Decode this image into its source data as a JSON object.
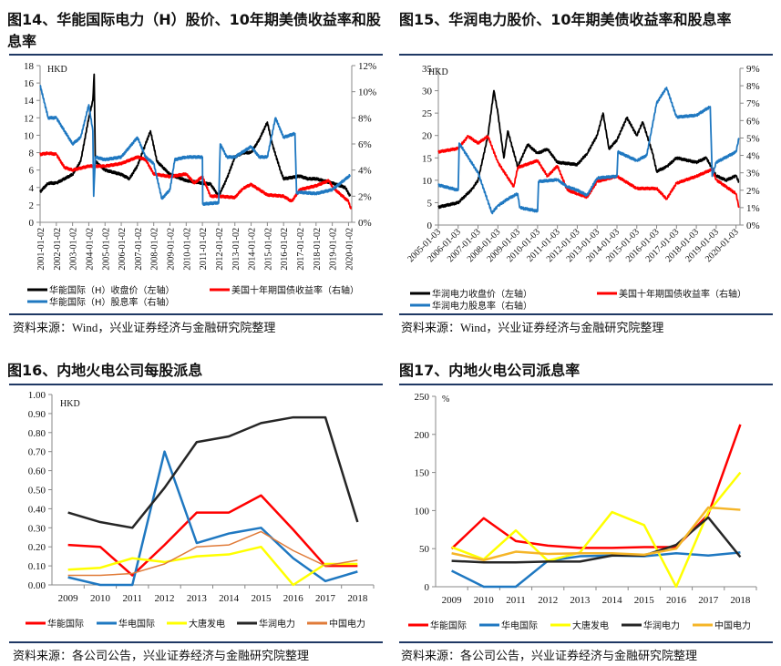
{
  "charts": [
    {
      "title": "图14、华能国际电力（H）股价、10年期美债收益率和股息率",
      "source": "资料来源：Wind，兴业证券经济与金融研究院整理"
    },
    {
      "title": "图15、华润电力股价、10年期美债收益率和股息率",
      "source": "资料来源：Wind，兴业证券经济与金融研究院整理"
    },
    {
      "title": "图16、内地火电公司每股派息",
      "source": "资料来源：各公司公告，兴业证券经济与金融研究院整理"
    },
    {
      "title": "图17、内地火电公司派息率",
      "source": "资料来源：各公司公告，兴业证券经济与金融研究院整理"
    }
  ],
  "chart_data": [
    {
      "type": "line",
      "title": "图14、华能国际电力（H）股价、10年期美债收益率和股息率",
      "unit_label": "HKD",
      "ylim": [
        0,
        18
      ],
      "yticks": [
        "0",
        "2",
        "4",
        "6",
        "8",
        "10",
        "12",
        "14",
        "16",
        "18"
      ],
      "y2lim": [
        0,
        12
      ],
      "y2ticks": [
        "0%",
        "2%",
        "4%",
        "6%",
        "8%",
        "10%",
        "12%"
      ],
      "xlim": [
        2001,
        2020.2
      ],
      "xticks": [
        "2001-01-02",
        "2002-01-02",
        "2003-01-02",
        "2004-01-02",
        "2005-01-02",
        "2006-01-02",
        "2007-01-02",
        "2008-01-02",
        "2009-01-02",
        "2010-01-02",
        "2011-01-02",
        "2012-01-02",
        "2013-01-02",
        "2014-01-02",
        "2015-01-02",
        "2016-01-02",
        "2017-01-02",
        "2018-01-02",
        "2019-01-02",
        "2020-01-02"
      ],
      "series": [
        {
          "name": "华能国际（H）收盘价（左轴）",
          "color": "#000000",
          "axis": "left",
          "points": [
            [
              2001,
              3.5
            ],
            [
              2001.5,
              4.5
            ],
            [
              2002,
              4.5
            ],
            [
              2002.5,
              5
            ],
            [
              2003,
              5.5
            ],
            [
              2003.5,
              7
            ],
            [
              2004,
              12
            ],
            [
              2004.25,
              14
            ],
            [
              2004.33,
              17
            ],
            [
              2004.4,
              7
            ],
            [
              2005,
              6
            ],
            [
              2006,
              5.5
            ],
            [
              2006.5,
              5
            ],
            [
              2007,
              6.5
            ],
            [
              2007.5,
              9
            ],
            [
              2007.8,
              10.5
            ],
            [
              2008.2,
              7
            ],
            [
              2009,
              5.5
            ],
            [
              2010,
              4.8
            ],
            [
              2011,
              4.5
            ],
            [
              2011.5,
              4.4
            ],
            [
              2012,
              3
            ],
            [
              2012.5,
              5
            ],
            [
              2013,
              7.5
            ],
            [
              2013.5,
              8
            ],
            [
              2014,
              8
            ],
            [
              2014.5,
              9.5
            ],
            [
              2015,
              11.5
            ],
            [
              2015.3,
              9
            ],
            [
              2015.8,
              6
            ],
            [
              2016,
              5
            ],
            [
              2017,
              5.3
            ],
            [
              2017.5,
              5
            ],
            [
              2018,
              5
            ],
            [
              2019,
              4.5
            ],
            [
              2019.8,
              4
            ],
            [
              2020.1,
              3
            ]
          ]
        },
        {
          "name": "美国十年期国债收益率（右轴）",
          "color": "#ff0000",
          "axis": "right",
          "points": [
            [
              2001,
              5.2
            ],
            [
              2001.5,
              5.3
            ],
            [
              2002,
              5.2
            ],
            [
              2002.5,
              4.2
            ],
            [
              2003,
              4
            ],
            [
              2004,
              4.3
            ],
            [
              2005,
              4.3
            ],
            [
              2006,
              4.5
            ],
            [
              2007,
              5
            ],
            [
              2007.5,
              4.8
            ],
            [
              2008,
              3.7
            ],
            [
              2009,
              3.5
            ],
            [
              2010,
              3.7
            ],
            [
              2010.5,
              3
            ],
            [
              2011,
              3.5
            ],
            [
              2011.5,
              2
            ],
            [
              2012,
              2
            ],
            [
              2013,
              1.9
            ],
            [
              2013.5,
              2.6
            ],
            [
              2014,
              2.9
            ],
            [
              2015,
              2.1
            ],
            [
              2016,
              2
            ],
            [
              2016.5,
              1.6
            ],
            [
              2017,
              2.5
            ],
            [
              2018,
              2.8
            ],
            [
              2018.8,
              3.2
            ],
            [
              2019,
              2.7
            ],
            [
              2020,
              1.6
            ],
            [
              2020.15,
              1.0
            ]
          ]
        },
        {
          "name": "华能国际（H）股息率（右轴）",
          "color": "#1f78c1",
          "axis": "right",
          "points": [
            [
              2001,
              10.5
            ],
            [
              2001.5,
              8
            ],
            [
              2002,
              8
            ],
            [
              2002.5,
              7
            ],
            [
              2003,
              6
            ],
            [
              2003.5,
              6.5
            ],
            [
              2004,
              9
            ],
            [
              2004.25,
              7
            ],
            [
              2004.3,
              2
            ],
            [
              2004.4,
              5
            ],
            [
              2005,
              4.8
            ],
            [
              2006,
              5
            ],
            [
              2007,
              6.5
            ],
            [
              2007.5,
              5
            ],
            [
              2008,
              4.5
            ],
            [
              2008.5,
              1.8
            ],
            [
              2009,
              2.5
            ],
            [
              2009.3,
              4.8
            ],
            [
              2010,
              5
            ],
            [
              2011,
              5
            ],
            [
              2011.02,
              1.4
            ],
            [
              2012,
              1.5
            ],
            [
              2012.1,
              6
            ],
            [
              2012.5,
              5
            ],
            [
              2013,
              5
            ],
            [
              2014,
              5.8
            ],
            [
              2014.5,
              5
            ],
            [
              2015,
              5
            ],
            [
              2015.5,
              8
            ],
            [
              2016,
              6.5
            ],
            [
              2016.7,
              6.8
            ],
            [
              2016.8,
              2.2
            ],
            [
              2017,
              2.3
            ],
            [
              2018,
              2.2
            ],
            [
              2019,
              2.5
            ],
            [
              2020.1,
              3.6
            ]
          ]
        }
      ]
    },
    {
      "type": "line",
      "title": "图15、华润电力股价、10年期美债收益率和股息率",
      "unit_label": "HKD",
      "ylim": [
        0,
        35
      ],
      "yticks": [
        "0",
        "5",
        "10",
        "15",
        "20",
        "25",
        "30",
        "35"
      ],
      "y2lim": [
        0,
        9
      ],
      "y2ticks": [
        "0%",
        "1%",
        "2%",
        "3%",
        "4%",
        "5%",
        "6%",
        "7%",
        "8%",
        "9%"
      ],
      "xlim": [
        2005,
        2020.2
      ],
      "xticks": [
        "2005-01-03",
        "2006-01-03",
        "2007-01-03",
        "2008-01-03",
        "2009-01-03",
        "2010-01-03",
        "2011-01-03",
        "2012-01-03",
        "2013-01-03",
        "2014-01-03",
        "2015-01-03",
        "2016-01-03",
        "2017-01-03",
        "2018-01-03",
        "2019-01-03",
        "2020-01-03"
      ],
      "series": [
        {
          "name": "华润电力收盘价（左轴）",
          "color": "#000000",
          "axis": "left",
          "points": [
            [
              2005,
              4
            ],
            [
              2006,
              5
            ],
            [
              2006.7,
              8
            ],
            [
              2007,
              10
            ],
            [
              2007.5,
              20
            ],
            [
              2007.8,
              30
            ],
            [
              2008,
              25
            ],
            [
              2008.3,
              15
            ],
            [
              2008.5,
              21
            ],
            [
              2009,
              13
            ],
            [
              2009.5,
              18
            ],
            [
              2010,
              16
            ],
            [
              2010.5,
              17
            ],
            [
              2011,
              14
            ],
            [
              2012,
              13.5
            ],
            [
              2012.5,
              16
            ],
            [
              2013,
              20
            ],
            [
              2013.3,
              25
            ],
            [
              2013.6,
              17
            ],
            [
              2014,
              19
            ],
            [
              2014.5,
              24
            ],
            [
              2015,
              20
            ],
            [
              2015.3,
              23
            ],
            [
              2015.8,
              16
            ],
            [
              2016,
              12
            ],
            [
              2016.5,
              13
            ],
            [
              2017,
              15
            ],
            [
              2018,
              14
            ],
            [
              2018.5,
              15
            ],
            [
              2019,
              11
            ],
            [
              2019.5,
              10
            ],
            [
              2020,
              11
            ],
            [
              2020.15,
              9.5
            ]
          ]
        },
        {
          "name": "美国十年期国债收益率（右轴）",
          "color": "#ff0000",
          "axis": "right",
          "points": [
            [
              2005,
              4.2
            ],
            [
              2006,
              4.4
            ],
            [
              2006.5,
              5.1
            ],
            [
              2007,
              4.7
            ],
            [
              2007.5,
              5.1
            ],
            [
              2008,
              3.6
            ],
            [
              2008.8,
              2.2
            ],
            [
              2009,
              3.3
            ],
            [
              2010,
              3.7
            ],
            [
              2010.5,
              2.8
            ],
            [
              2011,
              3.4
            ],
            [
              2011.5,
              2
            ],
            [
              2012,
              1.8
            ],
            [
              2012.5,
              1.6
            ],
            [
              2013,
              2.5
            ],
            [
              2014,
              2.8
            ],
            [
              2015,
              2.1
            ],
            [
              2016,
              2.1
            ],
            [
              2016.5,
              1.5
            ],
            [
              2017,
              2.4
            ],
            [
              2018,
              2.8
            ],
            [
              2018.8,
              3.2
            ],
            [
              2019,
              2.6
            ],
            [
              2020,
              1.8
            ],
            [
              2020.15,
              1.0
            ]
          ]
        },
        {
          "name": "华润电力股息率（右轴）",
          "color": "#1f78c1",
          "axis": "right",
          "points": [
            [
              2005,
              2.3
            ],
            [
              2006,
              2
            ],
            [
              2006.05,
              4.7
            ],
            [
              2007,
              3
            ],
            [
              2007.7,
              0.7
            ],
            [
              2008,
              1.1
            ],
            [
              2008.5,
              1.5
            ],
            [
              2009,
              1.8
            ],
            [
              2009.1,
              1
            ],
            [
              2010,
              0.8
            ],
            [
              2010.05,
              2.5
            ],
            [
              2011,
              2.6
            ],
            [
              2011.5,
              2.2
            ],
            [
              2012,
              2
            ],
            [
              2012.5,
              1.7
            ],
            [
              2013,
              2.7
            ],
            [
              2014,
              2.8
            ],
            [
              2014.05,
              4.2
            ],
            [
              2015,
              3.7
            ],
            [
              2015.5,
              4
            ],
            [
              2016,
              7
            ],
            [
              2016.5,
              7.9
            ],
            [
              2017,
              6.2
            ],
            [
              2018,
              6.3
            ],
            [
              2018.7,
              6.8
            ],
            [
              2018.8,
              2.8
            ],
            [
              2019,
              3.6
            ],
            [
              2020,
              4.2
            ],
            [
              2020.15,
              5
            ]
          ]
        }
      ]
    },
    {
      "type": "line",
      "title": "图16、内地火电公司每股派息",
      "unit_label": "HKD",
      "ylim": [
        0,
        1.0
      ],
      "yticks": [
        "0.00",
        "0.10",
        "0.20",
        "0.30",
        "0.40",
        "0.50",
        "0.60",
        "0.70",
        "0.80",
        "0.90",
        "1.00"
      ],
      "categories": [
        "2009",
        "2010",
        "2011",
        "2012",
        "2013",
        "2014",
        "2015",
        "2016",
        "2017",
        "2018"
      ],
      "series": [
        {
          "name": "华能国际",
          "color": "#ff0000",
          "values": [
            0.21,
            0.2,
            0.05,
            0.21,
            0.38,
            0.38,
            0.47,
            0.29,
            0.1,
            0.1
          ]
        },
        {
          "name": "华电国际",
          "color": "#1f78c1",
          "values": [
            0.04,
            0.0,
            0.0,
            0.7,
            0.22,
            0.27,
            0.3,
            0.14,
            0.02,
            0.07
          ]
        },
        {
          "name": "大唐发电",
          "color": "#ffff00",
          "values": [
            0.08,
            0.09,
            0.14,
            0.12,
            0.15,
            0.16,
            0.2,
            0.0,
            0.11,
            0.11
          ]
        },
        {
          "name": "华润电力",
          "color": "#262626",
          "values": [
            0.38,
            0.33,
            0.3,
            0.51,
            0.75,
            0.78,
            0.85,
            0.88,
            0.88,
            0.33
          ]
        },
        {
          "name": "中国电力",
          "color": "#e07b39",
          "values": [
            0.05,
            0.05,
            0.06,
            0.11,
            0.2,
            0.21,
            0.28,
            0.18,
            0.1,
            0.13
          ]
        }
      ]
    },
    {
      "type": "line",
      "title": "图17、内地火电公司派息率",
      "unit_label": "%",
      "ylim": [
        0,
        250
      ],
      "yticks": [
        "0",
        "50",
        "100",
        "150",
        "200",
        "250"
      ],
      "categories": [
        "2009",
        "2010",
        "2011",
        "2012",
        "2013",
        "2014",
        "2015",
        "2016",
        "2017",
        "2018"
      ],
      "series": [
        {
          "name": "华能国际",
          "color": "#ff0000",
          "values": [
            50,
            90,
            60,
            54,
            51,
            51,
            52,
            52,
            95,
            213
          ]
        },
        {
          "name": "华电国际",
          "color": "#1f78c1",
          "values": [
            21,
            0,
            0,
            34,
            40,
            41,
            40,
            44,
            41,
            45
          ]
        },
        {
          "name": "大唐发电",
          "color": "#ffff00",
          "values": [
            52,
            36,
            74,
            34,
            45,
            98,
            81,
            0,
            98,
            150
          ]
        },
        {
          "name": "华润电力",
          "color": "#262626",
          "values": [
            34,
            32,
            32,
            33,
            33,
            41,
            41,
            55,
            91,
            39
          ]
        },
        {
          "name": "中国电力",
          "color": "#f5b528",
          "values": [
            44,
            35,
            46,
            43,
            44,
            44,
            42,
            50,
            104,
            101
          ]
        }
      ]
    }
  ]
}
